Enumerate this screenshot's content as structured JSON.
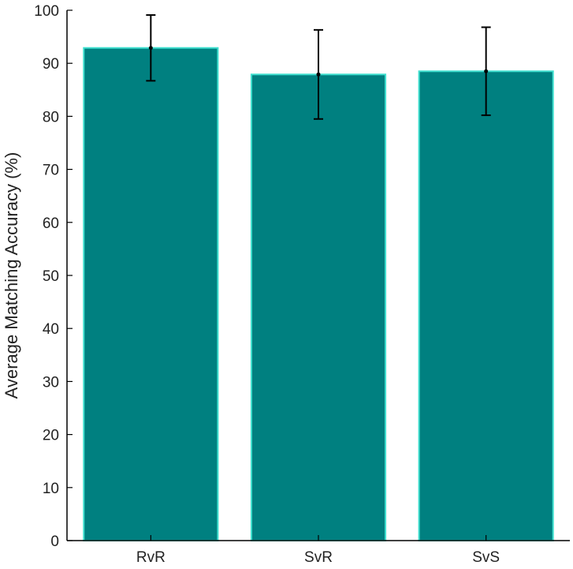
{
  "chart_data": {
    "type": "bar",
    "title": "",
    "xlabel": "",
    "ylabel": "Average Matching Accuracy (%)",
    "categories": [
      "RvR",
      "SvR",
      "SvS"
    ],
    "values": [
      92.9,
      87.9,
      88.5
    ],
    "errors": [
      6.2,
      8.4,
      8.3
    ],
    "ylim": [
      0,
      100
    ],
    "yticks": [
      0,
      10,
      20,
      30,
      40,
      50,
      60,
      70,
      80,
      90,
      100
    ],
    "grid": false,
    "legend": "none",
    "colors": {
      "bar_fill": "#008080",
      "bar_edge": "#40e0d0",
      "error_bar": "#000000",
      "axis": "#000000"
    }
  }
}
